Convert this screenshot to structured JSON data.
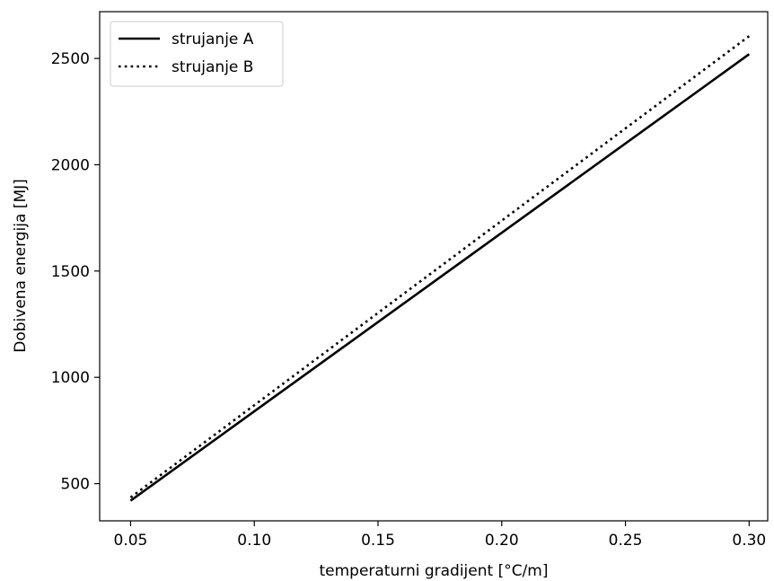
{
  "chart_data": {
    "type": "line",
    "title": "",
    "xlabel": "temperaturni gradijent [°C/m]",
    "ylabel": "Dobivena energija [MJ]",
    "xlim": [
      0.0375,
      0.3075
    ],
    "ylim": [
      325,
      2720
    ],
    "xticks": [
      0.05,
      0.1,
      0.15,
      0.2,
      0.25,
      0.3
    ],
    "xtick_labels": [
      "0.05",
      "0.10",
      "0.15",
      "0.20",
      "0.25",
      "0.30"
    ],
    "yticks": [
      500,
      1000,
      1500,
      2000,
      2500
    ],
    "ytick_labels": [
      "500",
      "1000",
      "1500",
      "2000",
      "2500"
    ],
    "grid": false,
    "legend_position": "top-left",
    "series": [
      {
        "name": "strujanje A",
        "line_style": "solid",
        "color": "#000000",
        "x": [
          0.05,
          0.3
        ],
        "y": [
          420,
          2520
        ]
      },
      {
        "name": "strujanje B",
        "line_style": "dotted",
        "color": "#000000",
        "x": [
          0.05,
          0.3
        ],
        "y": [
          435,
          2605
        ]
      }
    ]
  }
}
